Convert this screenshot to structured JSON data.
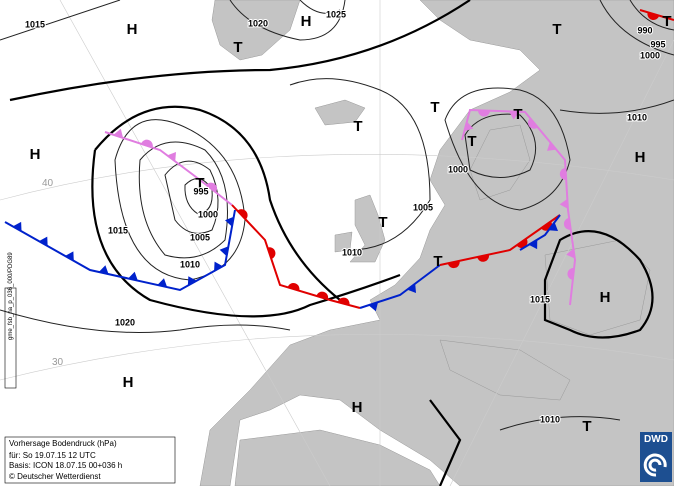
{
  "centers": [
    "H",
    "H",
    "T",
    "T",
    "T",
    "H",
    "T",
    "T",
    "T",
    "T",
    "T",
    "H",
    "T",
    "T",
    "H",
    "H",
    "H",
    "T"
  ],
  "isobars": [
    "1015",
    "1020",
    "1025",
    "990",
    "995",
    "1000",
    "1010",
    "1000",
    "995",
    "1000",
    "1005",
    "1010",
    "1015",
    "1005",
    "1010",
    "1020",
    "1015",
    "1010"
  ],
  "latitudes": [
    "40",
    "30"
  ],
  "info": {
    "title": "Vorhersage Bodendruck (hPa)",
    "valid": "für:  So 19.07.15  12 UTC",
    "basis": "Basis: ICON  18.07.15 00+036 h",
    "copyright": "© Deutscher Wetterdienst"
  },
  "side_label": "gme_fsb_na_p_036_000/PDG89",
  "logo": "DWD"
}
